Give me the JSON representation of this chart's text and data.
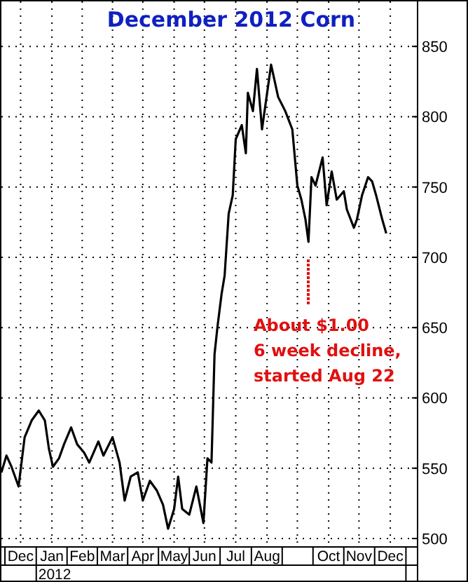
{
  "chart_data": {
    "type": "line",
    "title": "December 2012 Corn",
    "x": [
      "2011-11-27",
      "2011-12-02",
      "2011-12-07",
      "2011-12-14",
      "2011-12-20",
      "2011-12-27",
      "2012-01-03",
      "2012-01-09",
      "2012-01-13",
      "2012-01-17",
      "2012-01-23",
      "2012-01-28",
      "2012-02-04",
      "2012-02-10",
      "2012-02-17",
      "2012-02-22",
      "2012-03-02",
      "2012-03-07",
      "2012-03-16",
      "2012-03-23",
      "2012-03-28",
      "2012-04-03",
      "2012-04-10",
      "2012-04-15",
      "2012-04-22",
      "2012-04-29",
      "2012-05-05",
      "2012-05-10",
      "2012-05-16",
      "2012-05-20",
      "2012-05-24",
      "2012-05-31",
      "2012-06-07",
      "2012-06-14",
      "2012-06-18",
      "2012-06-22",
      "2012-06-25",
      "2012-06-28",
      "2012-07-02",
      "2012-07-05",
      "2012-07-09",
      "2012-07-13",
      "2012-07-16",
      "2012-07-22",
      "2012-07-26",
      "2012-07-28",
      "2012-08-02",
      "2012-08-06",
      "2012-08-11",
      "2012-08-20",
      "2012-08-27",
      "2012-09-03",
      "2012-09-10",
      "2012-09-15",
      "2012-09-19",
      "2012-09-23",
      "2012-09-26",
      "2012-09-29",
      "2012-10-03",
      "2012-10-10",
      "2012-10-14",
      "2012-10-19",
      "2012-10-24",
      "2012-10-31",
      "2012-11-03",
      "2012-11-10",
      "2012-11-13",
      "2012-11-18",
      "2012-11-24",
      "2012-11-28",
      "2012-12-02",
      "2012-12-08",
      "2012-12-12"
    ],
    "series": [
      {
        "color": "#000000",
        "values": [
          547,
          559,
          551,
          537,
          572,
          584,
          591,
          584,
          564,
          551,
          557,
          567,
          579,
          567,
          561,
          554,
          569,
          559,
          572,
          554,
          527,
          544,
          547,
          527,
          541,
          534,
          524,
          507,
          521,
          544,
          521,
          517,
          537,
          511,
          557,
          554,
          631,
          651,
          674,
          687,
          731,
          744,
          784,
          794,
          774,
          817,
          804,
          834,
          791,
          837,
          814,
          804,
          791,
          751,
          741,
          727,
          711,
          757,
          751,
          771,
          737,
          761,
          741,
          747,
          734,
          721,
          727,
          744,
          757,
          754,
          744,
          727,
          717
        ]
      }
    ],
    "xlim": [
      "2011-11-27",
      "2013-01-12"
    ],
    "xticks": [
      {
        "value": "2011-12-16",
        "label": "Dec"
      },
      {
        "value": "2012-01-16",
        "label": "Jan"
      },
      {
        "value": "2012-02-15",
        "label": "Feb"
      },
      {
        "value": "2012-03-16",
        "label": "Mar"
      },
      {
        "value": "2012-04-15",
        "label": "Apr"
      },
      {
        "value": "2012-05-16",
        "label": "May"
      },
      {
        "value": "2012-06-15",
        "label": "Jun"
      },
      {
        "value": "2012-07-16",
        "label": "Jul"
      },
      {
        "value": "2012-08-16",
        "label": "Aug"
      },
      {
        "value": "2012-09-15",
        "label": null
      },
      {
        "value": "2012-10-16",
        "label": "Oct"
      },
      {
        "value": "2012-11-15",
        "label": "Nov"
      },
      {
        "value": "2012-12-16",
        "label": "Dec"
      }
    ],
    "ylim": [
      494,
      882
    ],
    "yticks": [
      500,
      550,
      600,
      650,
      700,
      750,
      800,
      850
    ],
    "grid": true,
    "annotations": [
      "About $1.00\n6 week decline,\nstarted Aug 22",
      "2012"
    ]
  }
}
